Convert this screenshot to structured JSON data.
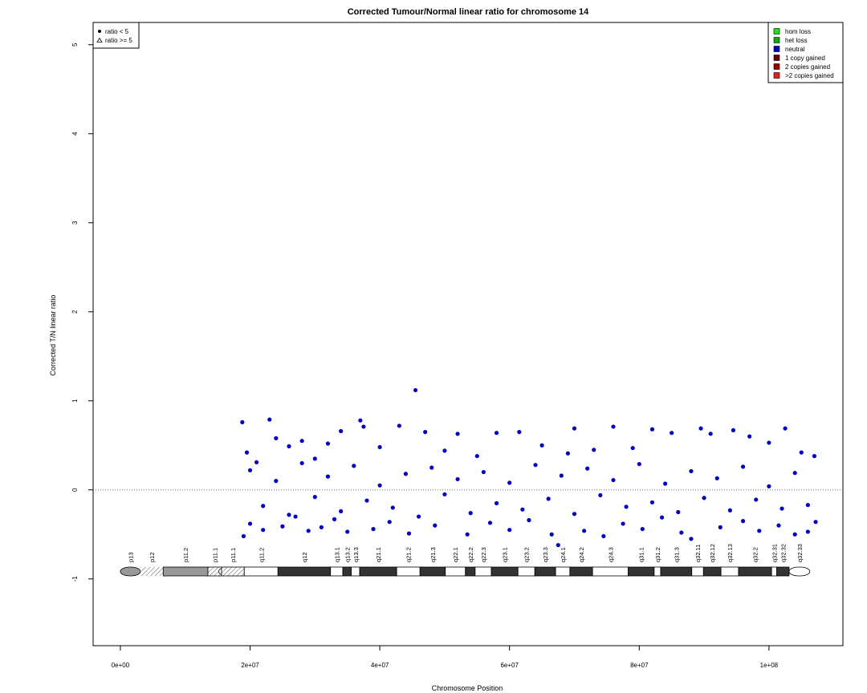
{
  "chart_data": {
    "type": "scatter",
    "title": "Corrected Tumour/Normal linear ratio for chromosome  14",
    "xlabel": "Chromosome Position",
    "ylabel": "Corrected T/N linear ratio",
    "xlim": [
      -4200000,
      111400000
    ],
    "ylim": [
      -1.75,
      5.25
    ],
    "xticks": [
      {
        "value": 0,
        "label": "0e+00"
      },
      {
        "value": 20000000,
        "label": "2e+07"
      },
      {
        "value": 40000000,
        "label": "4e+07"
      },
      {
        "value": 60000000,
        "label": "6e+07"
      },
      {
        "value": 80000000,
        "label": "8e+07"
      },
      {
        "value": 100000000,
        "label": "1e+08"
      }
    ],
    "yticks": [
      -1,
      0,
      1,
      2,
      3,
      4,
      5
    ],
    "reference_line": 0,
    "color": "#0000c0",
    "x": [
      18800000.0,
      19000000.0,
      19500000.0,
      20000000.0,
      21000000.0,
      22000000.0,
      23000000.0,
      24000000.0,
      25000000.0,
      26000000.0,
      27000000.0,
      28000000.0,
      29000000.0,
      30000000.0,
      31000000.0,
      32000000.0,
      33000000.0,
      34000000.0,
      35000000.0,
      37000000.0,
      37500000.0,
      39000000.0,
      40000000.0,
      41500000.0,
      43000000.0,
      44500000.0,
      45500000.0,
      47000000.0,
      48500000.0,
      50000000.0,
      52000000.0,
      53500000.0,
      55000000.0,
      57000000.0,
      58000000.0,
      60000000.0,
      61500000.0,
      63000000.0,
      65000000.0,
      66500000.0,
      67500000.0,
      69000000.0,
      70000000.0,
      71500000.0,
      73000000.0,
      74500000.0,
      76000000.0,
      77500000.0,
      79000000.0,
      80500000.0,
      82000000.0,
      83500000.0,
      85000000.0,
      86500000.0,
      88000000.0,
      89500000.0,
      91000000.0,
      92500000.0,
      94500000.0,
      96000000.0,
      97000000.0,
      98500000.0,
      100000000.0,
      101500000.0,
      102500000.0,
      104000000.0,
      105000000.0,
      106000000.0,
      107000000.0,
      107200000.0,
      20000000.0,
      22000000.0,
      24000000.0,
      26000000.0,
      28000000.0,
      30000000.0,
      32000000.0,
      34000000.0,
      36000000.0,
      38000000.0,
      40000000.0,
      42000000.0,
      44000000.0,
      46000000.0,
      48000000.0,
      50000000.0,
      52000000.0,
      54000000.0,
      56000000.0,
      58000000.0,
      60000000.0,
      62000000.0,
      64000000.0,
      66000000.0,
      68000000.0,
      70000000.0,
      72000000.0,
      74000000.0,
      76000000.0,
      78000000.0,
      80000000.0,
      82000000.0,
      84000000.0,
      86000000.0,
      88000000.0,
      90000000.0,
      92000000.0,
      94000000.0,
      96000000.0,
      98000000.0,
      100000000.0,
      102000000.0,
      104000000.0,
      106000000.0
    ],
    "values": [
      0.76,
      -0.52,
      0.42,
      -0.38,
      0.31,
      -0.45,
      0.79,
      0.58,
      -0.41,
      0.49,
      -0.3,
      0.55,
      -0.46,
      0.35,
      -0.42,
      0.52,
      -0.33,
      0.66,
      -0.47,
      0.78,
      0.71,
      -0.44,
      0.48,
      -0.36,
      0.72,
      -0.49,
      1.12,
      0.65,
      -0.4,
      0.44,
      0.63,
      -0.5,
      0.38,
      -0.37,
      0.64,
      -0.45,
      0.65,
      -0.34,
      0.5,
      -0.5,
      -0.62,
      0.41,
      0.69,
      -0.46,
      0.45,
      -0.52,
      0.71,
      -0.38,
      0.47,
      -0.44,
      0.68,
      -0.31,
      0.64,
      -0.48,
      -0.55,
      0.69,
      0.63,
      -0.42,
      0.67,
      -0.35,
      0.6,
      -0.46,
      0.53,
      -0.4,
      0.69,
      -0.5,
      0.42,
      -0.47,
      0.38,
      -0.36,
      0.22,
      -0.18,
      0.1,
      -0.28,
      0.3,
      -0.08,
      0.15,
      -0.24,
      0.27,
      -0.12,
      0.05,
      -0.2,
      0.18,
      -0.3,
      0.25,
      -0.05,
      0.12,
      -0.26,
      0.2,
      -0.15,
      0.08,
      -0.22,
      0.28,
      -0.1,
      0.16,
      -0.27,
      0.24,
      -0.06,
      0.11,
      -0.19,
      0.29,
      -0.14,
      0.07,
      -0.25,
      0.21,
      -0.09,
      0.13,
      -0.23,
      0.26,
      -0.11,
      0.04,
      -0.21,
      0.19,
      -0.17
    ],
    "legend_symbols": [
      {
        "label": "ratio < 5",
        "symbol": "dot"
      },
      {
        "label": "ratio >= 5",
        "symbol": "triangle"
      }
    ],
    "legend_states": [
      {
        "label": "hom loss",
        "color": "#22dd22"
      },
      {
        "label": "het loss",
        "color": "#11aa11"
      },
      {
        "label": "neutral",
        "color": "#0000c0"
      },
      {
        "label": "1 copy gained",
        "color": "#660000"
      },
      {
        "label": "2 copies gained",
        "color": "#990000"
      },
      {
        "label": ">2 copies gained",
        "color": "#dd2222"
      }
    ],
    "ideogram": [
      {
        "name": "p13",
        "start": 0,
        "end": 3100000,
        "stain": "gpos50"
      },
      {
        "name": "p12",
        "start": 3100000,
        "end": 6600000,
        "stain": "stalk"
      },
      {
        "name": "p11.2",
        "start": 6600000,
        "end": 13500000,
        "stain": "gpos50"
      },
      {
        "name": "p11.1",
        "start": 13500000,
        "end": 15600000,
        "stain": "acen"
      },
      {
        "name": "p11.1",
        "start": 15600000,
        "end": 19100000,
        "stain": "acen"
      },
      {
        "name": "q11.2",
        "start": 19100000,
        "end": 24300000,
        "stain": "gneg"
      },
      {
        "name": "q12",
        "start": 24300000,
        "end": 32400000,
        "stain": "gpos100"
      },
      {
        "name": "q13.1",
        "start": 32400000,
        "end": 34300000,
        "stain": "gneg"
      },
      {
        "name": "q13.2",
        "start": 34300000,
        "end": 35600000,
        "stain": "gpos100"
      },
      {
        "name": "q13.3",
        "start": 35600000,
        "end": 36900000,
        "stain": "gneg"
      },
      {
        "name": "q21.1",
        "start": 36900000,
        "end": 42600000,
        "stain": "gpos100"
      },
      {
        "name": "q21.2",
        "start": 42600000,
        "end": 46200000,
        "stain": "gneg"
      },
      {
        "name": "q21.3",
        "start": 46200000,
        "end": 50100000,
        "stain": "gpos100"
      },
      {
        "name": "q22.1",
        "start": 50100000,
        "end": 53200000,
        "stain": "gneg"
      },
      {
        "name": "q22.2",
        "start": 53200000,
        "end": 54700000,
        "stain": "gpos100"
      },
      {
        "name": "q22.3",
        "start": 54700000,
        "end": 57200000,
        "stain": "gneg"
      },
      {
        "name": "q23.1",
        "start": 57200000,
        "end": 61300000,
        "stain": "gpos100"
      },
      {
        "name": "q23.2",
        "start": 61300000,
        "end": 63900000,
        "stain": "gneg"
      },
      {
        "name": "q23.3",
        "start": 63900000,
        "end": 67100000,
        "stain": "gpos100"
      },
      {
        "name": "q24.1",
        "start": 67100000,
        "end": 69300000,
        "stain": "gneg"
      },
      {
        "name": "q24.2",
        "start": 69300000,
        "end": 72800000,
        "stain": "gpos100"
      },
      {
        "name": "q24.3",
        "start": 72800000,
        "end": 78300000,
        "stain": "gneg"
      },
      {
        "name": "q31.1",
        "start": 78300000,
        "end": 82300000,
        "stain": "gpos100"
      },
      {
        "name": "q31.2",
        "start": 82300000,
        "end": 83300000,
        "stain": "gneg"
      },
      {
        "name": "q31.3",
        "start": 83300000,
        "end": 88100000,
        "stain": "gpos100"
      },
      {
        "name": "q32.11",
        "start": 88100000,
        "end": 89900000,
        "stain": "gneg"
      },
      {
        "name": "q32.12",
        "start": 89900000,
        "end": 92600000,
        "stain": "gpos100"
      },
      {
        "name": "q32.13",
        "start": 92600000,
        "end": 95300000,
        "stain": "gneg"
      },
      {
        "name": "q32.2",
        "start": 95300000,
        "end": 100400000,
        "stain": "gpos100"
      },
      {
        "name": "q32.31",
        "start": 100400000,
        "end": 101200000,
        "stain": "gneg"
      },
      {
        "name": "q32.32",
        "start": 101200000,
        "end": 103100000,
        "stain": "gpos100"
      },
      {
        "name": "q32.33",
        "start": 103100000,
        "end": 106300000,
        "stain": "gneg"
      }
    ]
  }
}
